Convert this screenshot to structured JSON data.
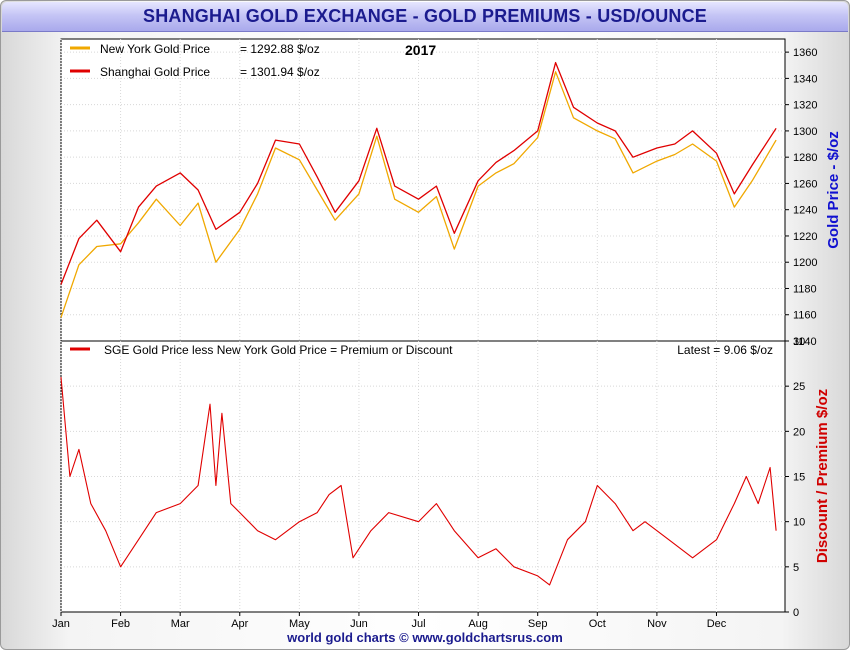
{
  "title": "SHANGHAI GOLD EXCHANGE - GOLD PREMIUMS - USD/OUNCE",
  "footer": "world gold charts © www.goldchartsrus.com",
  "colors": {
    "ny": "#f0a800",
    "sge": "#e00000",
    "premium": "#e00000",
    "right_axis_top": "#1010d0",
    "right_axis_bottom": "#d00000"
  },
  "chart_data": [
    {
      "type": "line",
      "title": "2017",
      "ylabel": "Gold Price - $/oz",
      "ylim": [
        1140,
        1370
      ],
      "yticks": [
        "1140",
        "1160",
        "1180",
        "1200",
        "1220",
        "1240",
        "1260",
        "1280",
        "1300",
        "1320",
        "1340",
        "1360"
      ],
      "grid": true,
      "legend_position": "top-left",
      "legend": [
        {
          "name": "New York Gold Price",
          "value_text": "= 1292.88 $/oz"
        },
        {
          "name": "Shanghai Gold Price",
          "value_text": "= 1301.94 $/oz"
        }
      ],
      "x_months": [
        "Jan",
        "Feb",
        "Mar",
        "Apr",
        "May",
        "Jun",
        "Jul",
        "Aug",
        "Sep",
        "Oct",
        "Nov",
        "Dec"
      ],
      "series": [
        {
          "name": "New York Gold Price",
          "x": [
            1.0,
            1.3,
            1.6,
            2.0,
            2.3,
            2.6,
            3.0,
            3.3,
            3.6,
            4.0,
            4.3,
            4.6,
            5.0,
            5.3,
            5.6,
            6.0,
            6.3,
            6.6,
            7.0,
            7.3,
            7.6,
            8.0,
            8.3,
            8.6,
            9.0,
            9.3,
            9.6,
            10.0,
            10.3,
            10.6,
            11.0,
            11.3,
            11.6,
            12.0,
            12.3,
            12.6,
            13.0
          ],
          "values": [
            1158,
            1198,
            1212,
            1214,
            1230,
            1248,
            1228,
            1245,
            1200,
            1225,
            1252,
            1287,
            1278,
            1255,
            1232,
            1252,
            1296,
            1248,
            1238,
            1250,
            1210,
            1258,
            1268,
            1275,
            1295,
            1345,
            1310,
            1300,
            1294,
            1268,
            1277,
            1282,
            1290,
            1277,
            1242,
            1262,
            1293
          ]
        },
        {
          "name": "Shanghai Gold Price",
          "x": [
            1.0,
            1.3,
            1.6,
            2.0,
            2.3,
            2.6,
            3.0,
            3.3,
            3.6,
            4.0,
            4.3,
            4.6,
            5.0,
            5.3,
            5.6,
            6.0,
            6.3,
            6.6,
            7.0,
            7.3,
            7.6,
            8.0,
            8.3,
            8.6,
            9.0,
            9.3,
            9.6,
            10.0,
            10.3,
            10.6,
            11.0,
            11.3,
            11.6,
            12.0,
            12.3,
            12.6,
            13.0
          ],
          "values": [
            1183,
            1218,
            1232,
            1208,
            1242,
            1258,
            1268,
            1255,
            1225,
            1238,
            1260,
            1293,
            1290,
            1265,
            1238,
            1262,
            1302,
            1258,
            1248,
            1258,
            1222,
            1262,
            1276,
            1285,
            1300,
            1352,
            1318,
            1306,
            1300,
            1280,
            1287,
            1290,
            1300,
            1283,
            1252,
            1274,
            1302
          ]
        }
      ]
    },
    {
      "type": "line",
      "title": "SGE Gold Price less New York Gold Price = Premium or Discount",
      "annotation": "Latest = 9.06 $/oz",
      "ylabel": "Discount / Premium $/oz",
      "ylim": [
        0,
        30
      ],
      "yticks": [
        "0",
        "5",
        "10",
        "15",
        "20",
        "25",
        "30"
      ],
      "grid": true,
      "legend_position": "top-left",
      "x_months": [
        "Jan",
        "Feb",
        "Mar",
        "Apr",
        "May",
        "Jun",
        "Jul",
        "Aug",
        "Sep",
        "Oct",
        "Nov",
        "Dec"
      ],
      "series": [
        {
          "name": "SGE Gold Price less New York Gold Price = Premium or Discount",
          "x": [
            1.0,
            1.15,
            1.3,
            1.5,
            1.75,
            2.0,
            2.3,
            2.6,
            3.0,
            3.3,
            3.5,
            3.6,
            3.7,
            3.85,
            4.0,
            4.3,
            4.6,
            5.0,
            5.3,
            5.5,
            5.7,
            5.9,
            6.2,
            6.5,
            7.0,
            7.3,
            7.6,
            8.0,
            8.3,
            8.6,
            9.0,
            9.2,
            9.5,
            9.8,
            10.0,
            10.3,
            10.6,
            10.8,
            11.2,
            11.6,
            12.0,
            12.3,
            12.5,
            12.7,
            12.9,
            13.0
          ],
          "values": [
            26,
            15,
            18,
            12,
            9,
            5,
            8,
            11,
            12,
            14,
            23,
            14,
            22,
            12,
            11,
            9,
            8,
            10,
            11,
            13,
            14,
            6,
            9,
            11,
            10,
            12,
            9,
            6,
            7,
            5,
            4,
            3,
            8,
            10,
            14,
            12,
            9,
            10,
            8,
            6,
            8,
            12,
            15,
            12,
            16,
            9
          ]
        }
      ]
    }
  ]
}
